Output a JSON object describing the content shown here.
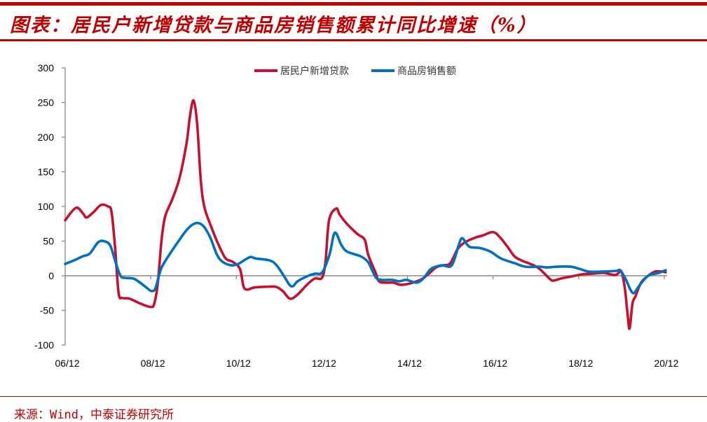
{
  "title": "图表：居民户新增贷款与商品房销售额累计同比增速（%）",
  "source": "来源：Wind，中泰证券研究所",
  "chart_data": {
    "type": "line",
    "title": "居民户新增贷款与商品房销售额累计同比增速（%）",
    "xlabel": "",
    "ylabel": "%",
    "x_unit": "months since 06/12",
    "xlim": [
      0,
      168
    ],
    "ylim": [
      -100,
      300
    ],
    "yticks": [
      -100,
      -50,
      0,
      50,
      100,
      150,
      200,
      250,
      300
    ],
    "xticks": [
      {
        "value": 0,
        "label": "06/12"
      },
      {
        "value": 24,
        "label": "08/12"
      },
      {
        "value": 48,
        "label": "10/12"
      },
      {
        "value": 72,
        "label": "12/12"
      },
      {
        "value": 96,
        "label": "14/12"
      },
      {
        "value": 120,
        "label": "16/12"
      },
      {
        "value": 144,
        "label": "18/12"
      },
      {
        "value": 168,
        "label": "20/12"
      }
    ],
    "legend_position": "top-center",
    "grid": false,
    "series": [
      {
        "name": "居民户新增贷款",
        "color": "#c8102e",
        "points": [
          [
            0,
            80
          ],
          [
            3,
            98
          ],
          [
            5,
            90
          ],
          [
            6,
            84
          ],
          [
            8,
            92
          ],
          [
            10,
            102
          ],
          [
            12,
            100
          ],
          [
            13,
            92
          ],
          [
            14,
            40
          ],
          [
            15,
            -25
          ],
          [
            16,
            -32
          ],
          [
            18,
            -33
          ],
          [
            21,
            -40
          ],
          [
            24,
            -45
          ],
          [
            25,
            -40
          ],
          [
            26,
            -10
          ],
          [
            27,
            50
          ],
          [
            28,
            85
          ],
          [
            30,
            110
          ],
          [
            32,
            140
          ],
          [
            34,
            190
          ],
          [
            35,
            230
          ],
          [
            36,
            253
          ],
          [
            37,
            220
          ],
          [
            38,
            140
          ],
          [
            39,
            100
          ],
          [
            41,
            70
          ],
          [
            43,
            45
          ],
          [
            45,
            25
          ],
          [
            47,
            20
          ],
          [
            49,
            10
          ],
          [
            50,
            -15
          ],
          [
            51,
            -20
          ],
          [
            53,
            -17
          ],
          [
            56,
            -16
          ],
          [
            59,
            -16
          ],
          [
            61,
            -22
          ],
          [
            63,
            -33
          ],
          [
            65,
            -28
          ],
          [
            68,
            -12
          ],
          [
            70,
            -4
          ],
          [
            72,
            -3
          ],
          [
            73,
            20
          ],
          [
            74,
            80
          ],
          [
            76,
            97
          ],
          [
            77,
            88
          ],
          [
            79,
            75
          ],
          [
            82,
            60
          ],
          [
            84,
            52
          ],
          [
            85,
            30
          ],
          [
            87,
            5
          ],
          [
            88,
            -8
          ],
          [
            90,
            -10
          ],
          [
            92,
            -10
          ],
          [
            94,
            -13
          ],
          [
            96,
            -12
          ],
          [
            98,
            -9
          ],
          [
            100,
            -5
          ],
          [
            102,
            3
          ],
          [
            104,
            12
          ],
          [
            106,
            15
          ],
          [
            108,
            18
          ],
          [
            110,
            38
          ],
          [
            112,
            48
          ],
          [
            115,
            55
          ],
          [
            117,
            58
          ],
          [
            120,
            63
          ],
          [
            122,
            55
          ],
          [
            124,
            42
          ],
          [
            126,
            28
          ],
          [
            128,
            22
          ],
          [
            131,
            16
          ],
          [
            133,
            10
          ],
          [
            136,
            -5
          ],
          [
            137,
            -7
          ],
          [
            139,
            -4
          ],
          [
            142,
            -1
          ],
          [
            145,
            2
          ],
          [
            148,
            3
          ],
          [
            151,
            4
          ],
          [
            154,
            1
          ],
          [
            155,
            3
          ],
          [
            156,
            6
          ],
          [
            157,
            -20
          ],
          [
            157.8,
            -60
          ],
          [
            158.3,
            -76
          ],
          [
            159.1,
            -40
          ],
          [
            159.9,
            -30
          ],
          [
            161.5,
            -10
          ],
          [
            163.5,
            0
          ],
          [
            165.4,
            6
          ],
          [
            167.4,
            6
          ],
          [
            168.4,
            5
          ]
        ]
      },
      {
        "name": "商品房销售额",
        "color": "#0070c0",
        "points": [
          [
            0,
            17
          ],
          [
            2.4,
            22
          ],
          [
            4.9,
            28
          ],
          [
            6.9,
            32
          ],
          [
            9.2,
            48
          ],
          [
            10.8,
            50
          ],
          [
            12.6,
            44
          ],
          [
            14.1,
            20
          ],
          [
            15.5,
            0
          ],
          [
            16.7,
            -3
          ],
          [
            19.1,
            -4
          ],
          [
            21,
            -10
          ],
          [
            23,
            -18
          ],
          [
            24.2,
            -22
          ],
          [
            25.3,
            -18
          ],
          [
            26.9,
            10
          ],
          [
            28.9,
            28
          ],
          [
            31.8,
            50
          ],
          [
            34.4,
            68
          ],
          [
            36.7,
            76
          ],
          [
            38.7,
            72
          ],
          [
            40.7,
            55
          ],
          [
            42.6,
            30
          ],
          [
            44.2,
            20
          ],
          [
            46.6,
            15
          ],
          [
            48.5,
            17
          ],
          [
            49.5,
            20
          ],
          [
            51.9,
            27
          ],
          [
            53.4,
            25
          ],
          [
            57.4,
            22
          ],
          [
            59.3,
            15
          ],
          [
            61.3,
            0
          ],
          [
            62.9,
            -13
          ],
          [
            63.9,
            -15
          ],
          [
            65.2,
            -8
          ],
          [
            68.2,
            0
          ],
          [
            70.1,
            3
          ],
          [
            72.1,
            5
          ],
          [
            74.1,
            30
          ],
          [
            75.6,
            62
          ],
          [
            77.4,
            45
          ],
          [
            79,
            35
          ],
          [
            82.9,
            28
          ],
          [
            84.9,
            20
          ],
          [
            85.9,
            10
          ],
          [
            87.2,
            -3
          ],
          [
            88.8,
            -6
          ],
          [
            91.7,
            -6
          ],
          [
            93.7,
            -8
          ],
          [
            95.7,
            -6
          ],
          [
            98.6,
            -10
          ],
          [
            100.6,
            -3
          ],
          [
            102.6,
            10
          ],
          [
            105.5,
            15
          ],
          [
            108.4,
            15
          ],
          [
            110.4,
            45
          ],
          [
            111.4,
            54
          ],
          [
            113.3,
            42
          ],
          [
            116.3,
            40
          ],
          [
            119.2,
            35
          ],
          [
            122.2,
            25
          ],
          [
            126.1,
            18
          ],
          [
            129.1,
            13
          ],
          [
            133,
            13
          ],
          [
            135,
            12
          ],
          [
            137.9,
            13
          ],
          [
            141.8,
            13
          ],
          [
            144.8,
            9
          ],
          [
            146.8,
            6
          ],
          [
            150.7,
            6
          ],
          [
            154.6,
            7
          ],
          [
            155.6,
            8
          ],
          [
            157.2,
            -5
          ],
          [
            158.5,
            -20
          ],
          [
            159.5,
            -25
          ],
          [
            160.9,
            -15
          ],
          [
            163.5,
            0
          ],
          [
            166.4,
            4
          ],
          [
            168.4,
            8
          ]
        ]
      }
    ]
  }
}
